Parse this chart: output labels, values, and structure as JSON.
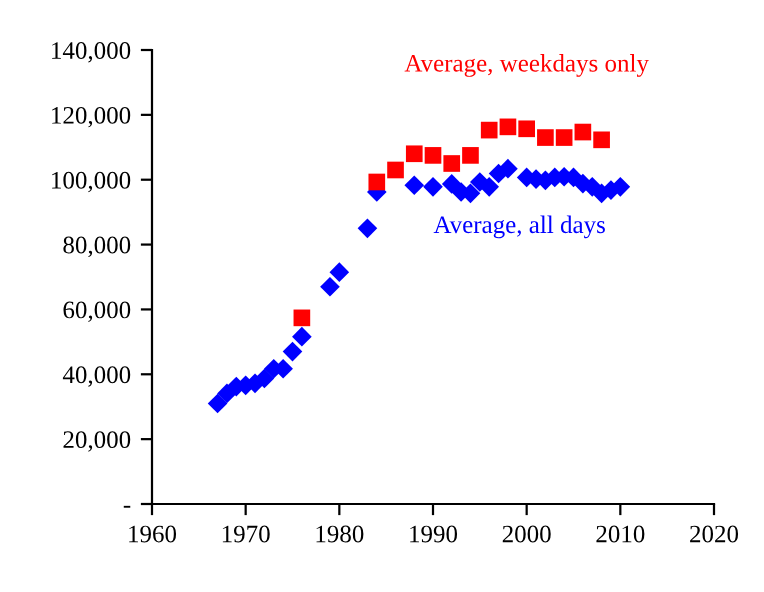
{
  "chart_data": {
    "type": "scatter",
    "xlim": [
      1960,
      2020
    ],
    "xticks": [
      1960,
      1970,
      1980,
      1990,
      2000,
      2010,
      2020
    ],
    "ylim": [
      0,
      140000
    ],
    "yticks": [
      {
        "value": 0,
        "label": "-"
      },
      {
        "value": 20000,
        "label": "20,000"
      },
      {
        "value": 40000,
        "label": "40,000"
      },
      {
        "value": 60000,
        "label": "60,000"
      },
      {
        "value": 80000,
        "label": "80,000"
      },
      {
        "value": 100000,
        "label": "100,000"
      },
      {
        "value": 120000,
        "label": "120,000"
      },
      {
        "value": 140000,
        "label": "140,000"
      }
    ],
    "grid": false,
    "legend": false,
    "series": [
      {
        "name": "Average, weekdays only",
        "color": "#ff0000",
        "marker": "square",
        "x": [
          1976,
          1984,
          1986,
          1988,
          1990,
          1992,
          1994,
          1996,
          1998,
          2000,
          2002,
          2004,
          2006,
          2008
        ],
        "values": [
          57400,
          99300,
          103000,
          108000,
          107500,
          105000,
          107500,
          115300,
          116300,
          115700,
          113000,
          113000,
          114700,
          112300
        ]
      },
      {
        "name": "Average, all days",
        "color": "#0000ff",
        "marker": "diamond",
        "x": [
          1967,
          1968,
          1969,
          1970,
          1971,
          1972,
          1973,
          1974,
          1975,
          1976,
          1979,
          1980,
          1983,
          1984,
          1988,
          1990,
          1992,
          1993,
          1994,
          1995,
          1996,
          1997,
          1998,
          2000,
          2001,
          2002,
          2003,
          2004,
          2005,
          2006,
          2007,
          2008,
          2009,
          2010
        ],
        "values": [
          31000,
          34100,
          36200,
          36600,
          37200,
          38700,
          41700,
          41700,
          47000,
          51600,
          67000,
          71500,
          85000,
          96200,
          98300,
          97800,
          98700,
          96200,
          95800,
          99300,
          97800,
          101900,
          103400,
          100700,
          100200,
          99800,
          100700,
          100900,
          100700,
          98800,
          97800,
          95800,
          96800,
          97800
        ]
      }
    ]
  }
}
